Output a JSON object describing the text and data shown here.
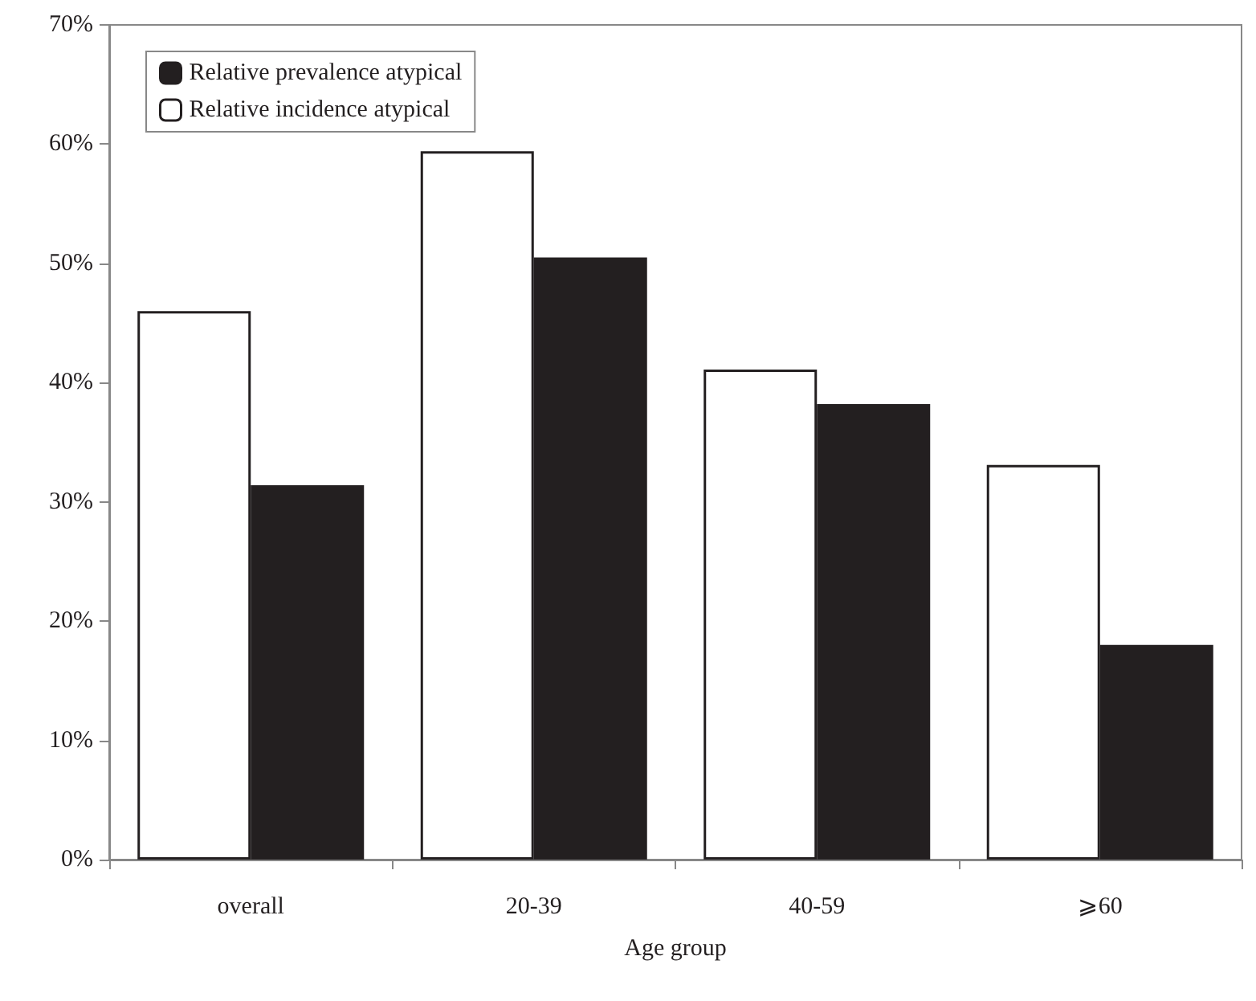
{
  "chart_data": {
    "type": "bar",
    "xlabel": "Age group",
    "categories": [
      "overall",
      "20-39",
      "40-59",
      "⩾60"
    ],
    "series": [
      {
        "name": "Relative incidence atypical",
        "color": "#ffffff",
        "values": [
          46.0,
          59.4,
          41.1,
          33.1
        ]
      },
      {
        "name": "Relative prevalence atypical",
        "color": "#231f20",
        "values": [
          31.4,
          50.5,
          38.2,
          18.0
        ]
      }
    ],
    "ylim": [
      0,
      70
    ],
    "yticks": [
      {
        "value": 0,
        "label": "0%"
      },
      {
        "value": 10,
        "label": "10%"
      },
      {
        "value": 20,
        "label": "20%"
      },
      {
        "value": 30,
        "label": "30%"
      },
      {
        "value": 40,
        "label": "40%"
      },
      {
        "value": 50,
        "label": "50%"
      },
      {
        "value": 60,
        "label": "60%"
      },
      {
        "value": 70,
        "label": "70%"
      }
    ],
    "grid": false,
    "legend": "top left"
  }
}
